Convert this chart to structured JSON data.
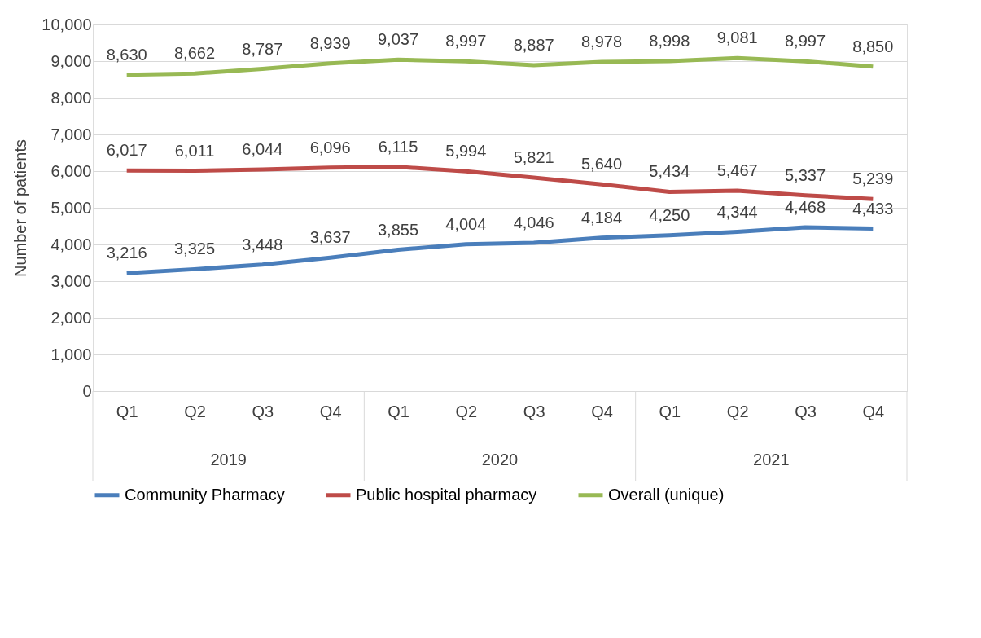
{
  "chart_data": {
    "type": "line",
    "ylabel": "Number of patients",
    "categories": [
      "Q1",
      "Q2",
      "Q3",
      "Q4",
      "Q1",
      "Q2",
      "Q3",
      "Q4",
      "Q1",
      "Q2",
      "Q3",
      "Q4"
    ],
    "annotations": [
      "2019",
      "2020",
      "2021"
    ],
    "series": [
      {
        "name": "Community Pharmacy",
        "color": "#4a7ebb",
        "values": [
          3216,
          3325,
          3448,
          3637,
          3855,
          4004,
          4046,
          4184,
          4250,
          4344,
          4468,
          4433
        ],
        "value_labels": [
          "3,216",
          "3,325",
          "3,448",
          "3,637",
          "3,855",
          "4,004",
          "4,046",
          "4,184",
          "4,250",
          "4,344",
          "4,468",
          "4,433"
        ]
      },
      {
        "name": "Public hospital pharmacy",
        "color": "#be4b48",
        "values": [
          6017,
          6011,
          6044,
          6096,
          6115,
          5994,
          5821,
          5640,
          5434,
          5467,
          5337,
          5239
        ],
        "value_labels": [
          "6,017",
          "6,011",
          "6,044",
          "6,096",
          "6,115",
          "5,994",
          "5,821",
          "5,640",
          "5,434",
          "5,467",
          "5,337",
          "5,239"
        ]
      },
      {
        "name": "Overall (unique)",
        "color": "#98b954",
        "values": [
          8630,
          8662,
          8787,
          8939,
          9037,
          8997,
          8887,
          8978,
          8998,
          9081,
          8997,
          8850
        ],
        "value_labels": [
          "8,630",
          "8,662",
          "8,787",
          "8,939",
          "9,037",
          "8,997",
          "8,887",
          "8,978",
          "8,998",
          "9,081",
          "8,997",
          "8,850"
        ]
      }
    ],
    "ylim": [
      0,
      10000
    ],
    "yticks": [
      0,
      {
        "value": 1000,
        "label": "1,000"
      },
      {
        "value": 2000,
        "label": "2,000"
      },
      {
        "value": 3000,
        "label": "3,000"
      },
      {
        "value": 4000,
        "label": "4,000"
      },
      {
        "value": 5000,
        "label": "5,000"
      },
      {
        "value": 6000,
        "label": "6,000"
      },
      {
        "value": 7000,
        "label": "7,000"
      },
      {
        "value": 8000,
        "label": "8,000"
      },
      {
        "value": 9000,
        "label": "9,000"
      },
      {
        "value": 10000,
        "label": "10,000"
      }
    ],
    "grid": "y",
    "legend": "bottom",
    "marker": "none",
    "line_style": "solid"
  }
}
